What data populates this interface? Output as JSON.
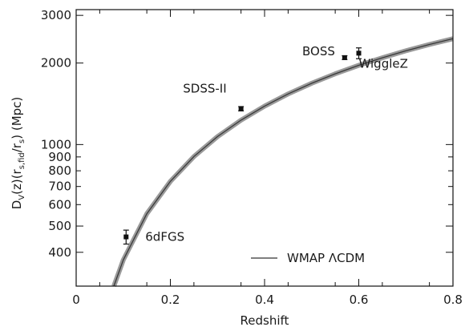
{
  "chart_data": {
    "type": "scatter",
    "xlabel": "Redshift",
    "ylabel": "D_V(z)(r_s,fid/r_s) (Mpc)",
    "ylabel_parts": {
      "main": "D",
      "sub_v": "V",
      "mid1": "(z)(r",
      "sub_fid": "s,fid",
      "mid2": "/r",
      "sub_s": "s",
      "end": ") (Mpc)"
    },
    "xlim": [
      0,
      0.8
    ],
    "ylim": [
      300,
      3150
    ],
    "yscale": "log",
    "x_ticks": [
      0,
      0.2,
      0.4,
      0.6,
      0.8
    ],
    "x_tick_labels": [
      "0",
      "0.2",
      "0.4",
      "0.6",
      "0.8"
    ],
    "y_ticks": [
      400,
      500,
      600,
      700,
      800,
      900,
      1000,
      2000,
      3000
    ],
    "y_tick_labels": [
      "400",
      "500",
      "600",
      "700",
      "800",
      "900",
      "1000",
      "2000",
      "3000"
    ],
    "series": [
      {
        "name": "WMAP ΛCDM",
        "kind": "band",
        "x": [
          0.08,
          0.1,
          0.15,
          0.2,
          0.25,
          0.3,
          0.35,
          0.4,
          0.45,
          0.5,
          0.55,
          0.6,
          0.65,
          0.7,
          0.75,
          0.8
        ],
        "y": [
          300,
          375,
          555,
          731,
          903,
          1070,
          1231,
          1387,
          1538,
          1684,
          1825,
          1961,
          2092,
          2219,
          2342,
          2460
        ]
      },
      {
        "kind": "points",
        "points": [
          {
            "label": "6dFGS",
            "x": 0.106,
            "y": 456,
            "err": 27
          },
          {
            "label": "SDSS-II",
            "x": 0.35,
            "y": 1356,
            "err": 25
          },
          {
            "label": "BOSS",
            "x": 0.57,
            "y": 2094,
            "err": 34
          },
          {
            "label": "WiggleZ",
            "x": 0.6,
            "y": 2175,
            "err": 100
          }
        ]
      }
    ],
    "legend": {
      "label": "WMAP ΛCDM",
      "position": "bottom-right"
    }
  }
}
